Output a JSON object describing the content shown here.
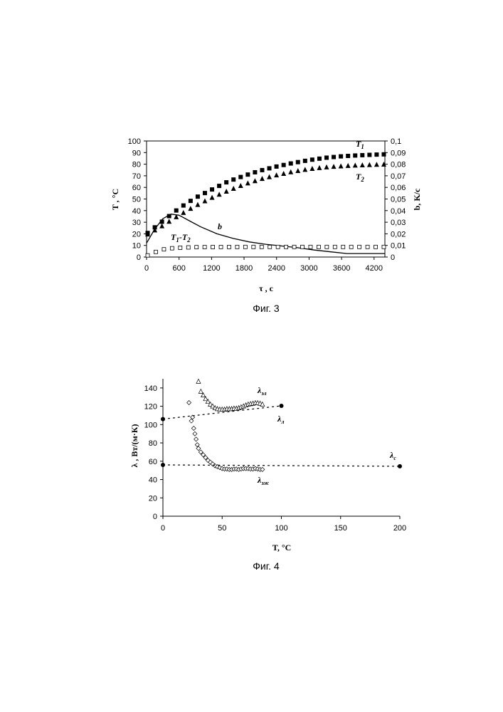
{
  "figures": [
    {
      "caption": "Фиг. 3"
    },
    {
      "caption": "Фиг. 4"
    }
  ],
  "chart_data": [
    {
      "type": "line",
      "title": "",
      "xlabel": "τ , c",
      "ylabel": "T , °C",
      "y2label": "b, K/c",
      "xlim": [
        0,
        4400
      ],
      "ylim": [
        0,
        100
      ],
      "y2lim": [
        0,
        0.1
      ],
      "xticks": [
        "0",
        "600",
        "1200",
        "1800",
        "2400",
        "3000",
        "3600",
        "4200"
      ],
      "yticks": [
        "0",
        "10",
        "20",
        "30",
        "40",
        "50",
        "60",
        "70",
        "80",
        "90",
        "100"
      ],
      "y2ticks": [
        "0",
        "0,01",
        "0,02",
        "0,03",
        "0,04",
        "0,05",
        "0,06",
        "0,07",
        "0,08",
        "0,09",
        "0,1"
      ],
      "grid": false,
      "series": [
        {
          "name": "T1",
          "label_main": "T",
          "label_sub": "1",
          "marker": "square-filled",
          "axis": "left",
          "x": [
            0,
            300,
            600,
            900,
            1200,
            1500,
            1800,
            2100,
            2400,
            2700,
            3000,
            3300,
            3600,
            3900,
            4200,
            4400
          ],
          "y": [
            20,
            31,
            42,
            51,
            58,
            65,
            70,
            74.5,
            78,
            81,
            83.5,
            85.5,
            86.8,
            87.6,
            88.2,
            88.5
          ]
        },
        {
          "name": "T2",
          "label_main": "T",
          "label_sub": "2",
          "marker": "triangle-filled",
          "axis": "left",
          "x": [
            0,
            300,
            600,
            900,
            1200,
            1500,
            1800,
            2100,
            2400,
            2700,
            3000,
            3300,
            3600,
            3900,
            4200,
            4400
          ],
          "y": [
            19,
            27,
            36,
            44,
            51,
            57,
            62.5,
            67,
            70.5,
            73.5,
            75.8,
            77.3,
            78.3,
            79,
            79.5,
            79.8
          ]
        },
        {
          "name": "T1 -T2",
          "label_main": "T",
          "label_sub": "1",
          "label_mid": "-T",
          "label_sub2": "2",
          "marker": "square-open",
          "axis": "left",
          "x": [
            0,
            100,
            200,
            300,
            450,
            600,
            900,
            1200,
            1800,
            2400,
            3000,
            3600,
            4200,
            4400
          ],
          "y": [
            1,
            3,
            5,
            6.5,
            7.5,
            8,
            8.5,
            8.6,
            8.7,
            8.7,
            8.7,
            8.7,
            8.7,
            8.7
          ]
        },
        {
          "name": "b",
          "label_main": "b",
          "marker": "line",
          "axis": "right",
          "x": [
            0,
            150,
            300,
            450,
            600,
            800,
            1000,
            1300,
            1600,
            1900,
            2200,
            2500,
            2800,
            3100,
            3400,
            3700,
            4000,
            4400
          ],
          "y": [
            0.012,
            0.024,
            0.033,
            0.037,
            0.036,
            0.031,
            0.026,
            0.02,
            0.016,
            0.013,
            0.011,
            0.0095,
            0.008,
            0.006,
            0.0045,
            0.003,
            0.003,
            0.003
          ]
        }
      ]
    },
    {
      "type": "scatter",
      "title": "",
      "xlabel": "T, °C",
      "ylabel": "λ , Вт/(м·К)",
      "xlim": [
        0,
        200
      ],
      "ylim": [
        0,
        150
      ],
      "xticks": [
        "0",
        "50",
        "100",
        "150",
        "200"
      ],
      "yticks": [
        "0",
        "20",
        "40",
        "60",
        "80",
        "100",
        "120",
        "140"
      ],
      "grid": false,
      "series": [
        {
          "name": "λэл",
          "label_main": "λ",
          "label_sub": "эл",
          "marker": "triangle-open",
          "x": [
            30,
            32,
            34,
            36,
            38,
            40,
            42,
            44,
            46,
            48,
            50,
            52,
            54,
            56,
            58,
            60,
            62,
            64,
            66,
            68,
            70,
            72,
            74,
            76,
            78,
            80,
            82,
            84
          ],
          "y": [
            147,
            136,
            132,
            128,
            125,
            122,
            120,
            118,
            117,
            116.5,
            116.5,
            116.5,
            117,
            117,
            117,
            117.5,
            117.5,
            118,
            119,
            120,
            121,
            122,
            122.5,
            123,
            123.5,
            123.5,
            123,
            122
          ]
        },
        {
          "name": "λэж",
          "label_main": "λ",
          "label_sub": "эж",
          "marker": "diamond-open",
          "x": [
            22,
            24,
            25,
            26,
            27,
            28,
            29,
            30,
            32,
            34,
            36,
            38,
            40,
            42,
            44,
            46,
            48,
            50,
            52,
            54,
            56,
            58,
            60,
            62,
            64,
            66,
            68,
            70,
            72,
            74,
            76,
            78,
            80,
            82,
            84
          ],
          "y": [
            124,
            104,
            108,
            96,
            90,
            84,
            78,
            74,
            70,
            67,
            64,
            61,
            59,
            57,
            55,
            54,
            53,
            52,
            51.5,
            51.5,
            51,
            51,
            51.5,
            51.5,
            51,
            51.5,
            52,
            52,
            52,
            51.5,
            51.5,
            52,
            51.5,
            51,
            51
          ]
        },
        {
          "name": "λл",
          "label_main": "λ",
          "label_sub": "л",
          "marker": "dot-filled",
          "line": "dotted",
          "x": [
            0,
            100
          ],
          "y": [
            106,
            120.5
          ]
        },
        {
          "name": "λс",
          "label_main": "λ",
          "label_sub": "с",
          "marker": "dot-filled",
          "line": "dotted",
          "x": [
            0,
            200
          ],
          "y": [
            56,
            54.5
          ]
        }
      ]
    }
  ]
}
